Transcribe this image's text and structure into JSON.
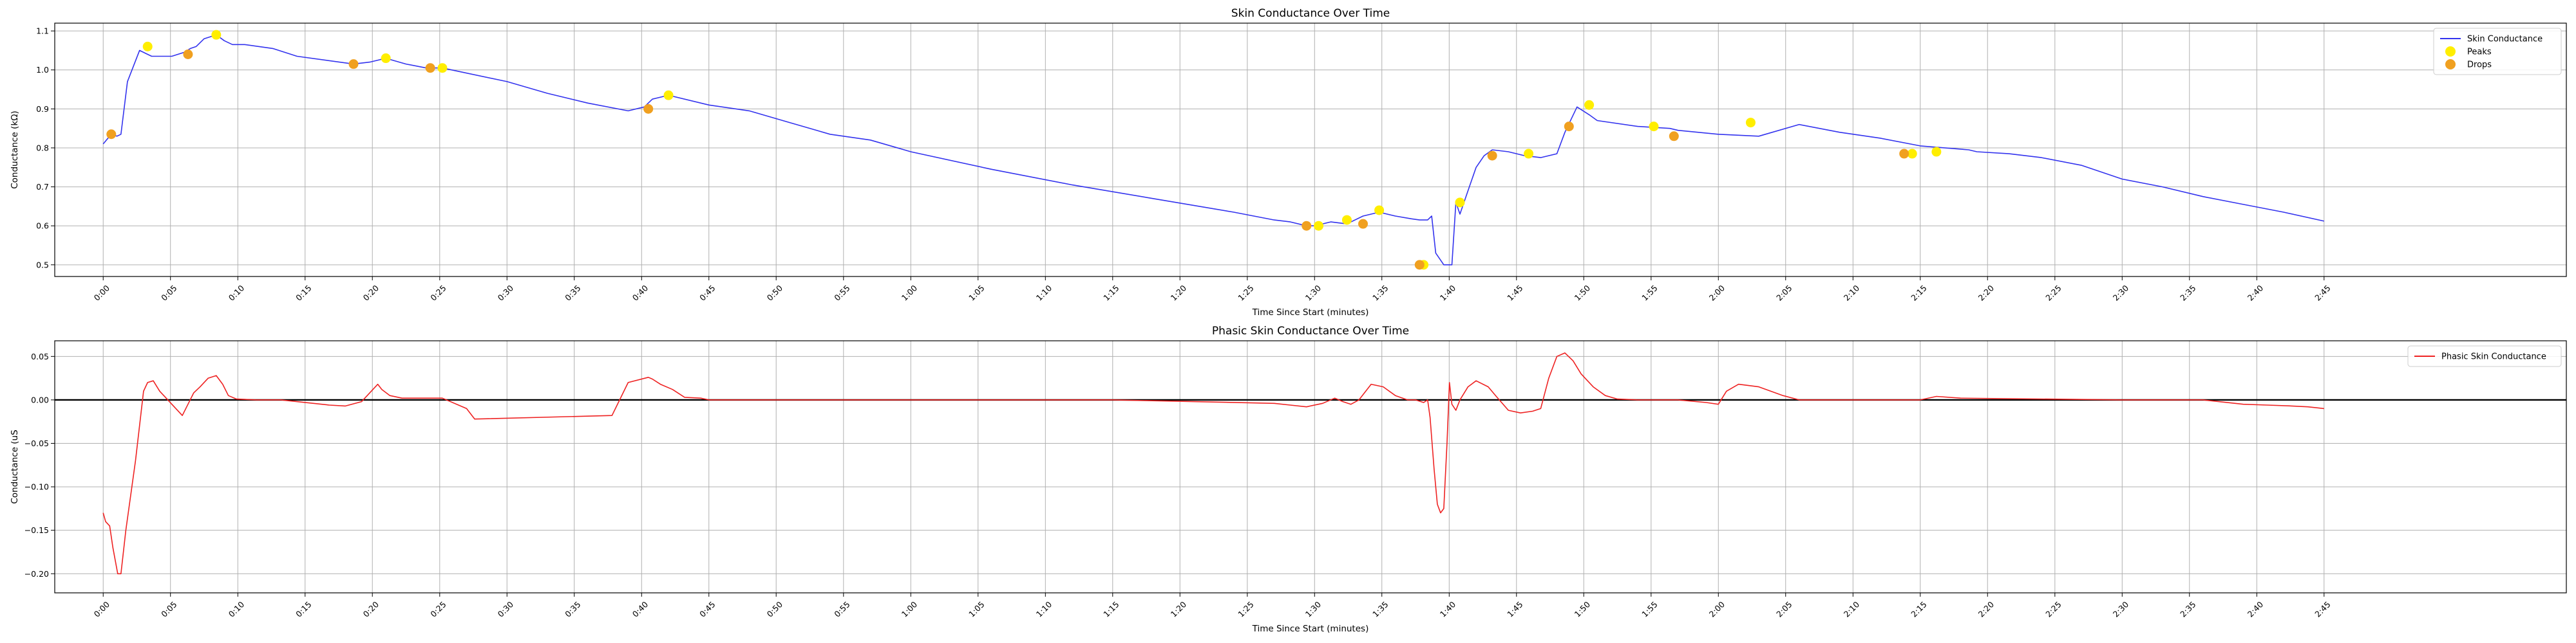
{
  "colors": {
    "skin_line": "#3333ee",
    "phasic_line": "#ee2222",
    "peaks": "#ffee00",
    "drops": "#f0a020",
    "grid": "#b0b0b0"
  },
  "chart_data": [
    {
      "type": "line",
      "title": "Skin Conductance Over Time",
      "xlabel": "Time Since Start (minutes)",
      "ylabel": "Conductance (kΩ)",
      "xlim": [
        -0.06,
        3.05
      ],
      "ylim": [
        0.47,
        1.12
      ],
      "x_unit": "minutes",
      "xticks": [
        0,
        0.0833,
        0.1667,
        0.25,
        0.3333,
        0.4167,
        0.5,
        0.5833,
        0.6667,
        0.75,
        0.8333,
        0.9167,
        1.0,
        1.0833,
        1.1667,
        1.25,
        1.3333,
        1.4167,
        1.5,
        1.5833,
        1.6667,
        1.75,
        1.8333,
        1.9167,
        2.0,
        2.0833,
        2.1667,
        2.25,
        2.3333,
        2.4167,
        2.5,
        2.5833,
        2.6667,
        2.75
      ],
      "xtick_labels": [
        "0:00",
        "0:05",
        "0:10",
        "0:15",
        "0:20",
        "0:25",
        "0:30",
        "0:35",
        "0:40",
        "0:45",
        "0:50",
        "0:55",
        "1:00",
        "1:05",
        "1:10",
        "1:15",
        "1:20",
        "1:25",
        "1:30",
        "1:35",
        "1:40",
        "1:45",
        "1:50",
        "1:55",
        "2:00",
        "2:05",
        "2:10",
        "2:15",
        "2:20",
        "2:25",
        "2:30",
        "2:35",
        "2:40",
        "2:45"
      ],
      "yticks": [
        0.5,
        0.6,
        0.7,
        0.8,
        0.9,
        1.0,
        1.1
      ],
      "ytick_labels": [
        "0.5",
        "0.6",
        "0.7",
        "0.8",
        "0.9",
        "1.0",
        "1.1"
      ],
      "grid": true,
      "legend": "top-right",
      "series": [
        {
          "name": "Skin Conductance",
          "style": "line",
          "x": [
            0,
            0.01,
            0.017,
            0.022,
            0.03,
            0.045,
            0.055,
            0.06,
            0.07,
            0.085,
            0.1,
            0.108,
            0.115,
            0.125,
            0.14,
            0.15,
            0.16,
            0.175,
            0.21,
            0.24,
            0.31,
            0.33,
            0.35,
            0.375,
            0.4,
            0.42,
            0.5,
            0.55,
            0.6,
            0.65,
            0.67,
            0.68,
            0.7,
            0.7,
            0.75,
            0.8,
            0.85,
            0.9,
            0.95,
            1.0,
            1.1,
            1.2,
            1.3,
            1.4,
            1.45,
            1.47,
            1.49,
            1.5,
            1.52,
            1.54,
            1.56,
            1.58,
            1.6,
            1.62,
            1.63,
            1.64,
            1.645,
            1.65,
            1.66,
            1.67,
            1.675,
            1.68,
            1.69,
            1.7,
            1.71,
            1.72,
            1.74,
            1.76,
            1.78,
            1.8,
            1.81,
            1.825,
            1.84,
            1.85,
            1.9,
            1.94,
            1.95,
            2.0,
            2.05,
            2.05,
            2.1,
            2.15,
            2.2,
            2.25,
            2.31,
            2.32,
            2.36,
            2.4,
            2.45,
            2.5,
            2.55,
            2.6,
            2.65,
            2.7,
            2.75
          ],
          "y": [
            0.81,
            0.835,
            0.83,
            0.835,
            0.97,
            1.05,
            1.04,
            1.035,
            1.035,
            1.035,
            1.045,
            1.055,
            1.06,
            1.08,
            1.09,
            1.075,
            1.065,
            1.065,
            1.055,
            1.035,
            1.015,
            1.02,
            1.03,
            1.015,
            1.005,
            1.005,
            0.97,
            0.94,
            0.915,
            0.895,
            0.905,
            0.925,
            0.935,
            0.935,
            0.91,
            0.895,
            0.865,
            0.835,
            0.82,
            0.79,
            0.745,
            0.705,
            0.67,
            0.635,
            0.615,
            0.61,
            0.6,
            0.6,
            0.61,
            0.605,
            0.625,
            0.635,
            0.625,
            0.618,
            0.615,
            0.615,
            0.625,
            0.53,
            0.5,
            0.5,
            0.66,
            0.63,
            0.69,
            0.75,
            0.78,
            0.795,
            0.79,
            0.78,
            0.775,
            0.785,
            0.84,
            0.905,
            0.885,
            0.87,
            0.855,
            0.85,
            0.845,
            0.835,
            0.83,
            0.83,
            0.86,
            0.84,
            0.825,
            0.805,
            0.795,
            0.79,
            0.785,
            0.775,
            0.755,
            0.72,
            0.7,
            0.675,
            0.655,
            0.635,
            0.612
          ]
        },
        {
          "name": "Peaks",
          "style": "scatter",
          "x": [
            0.055,
            0.14,
            0.35,
            0.42,
            0.7,
            1.505,
            1.54,
            1.58,
            1.635,
            1.68,
            1.765,
            1.84,
            1.92,
            2.04,
            2.24,
            2.27
          ],
          "y": [
            1.06,
            1.09,
            1.03,
            1.005,
            0.935,
            0.6,
            0.615,
            0.64,
            0.5,
            0.66,
            0.785,
            0.91,
            0.855,
            0.865,
            0.785,
            0.79
          ]
        },
        {
          "name": "Drops",
          "style": "scatter",
          "x": [
            0.01,
            0.105,
            0.31,
            0.405,
            0.675,
            1.49,
            1.56,
            1.63,
            1.72,
            1.815,
            1.945,
            2.23
          ],
          "y": [
            0.835,
            1.04,
            1.015,
            1.005,
            0.9,
            0.6,
            0.605,
            0.5,
            0.78,
            0.855,
            0.83,
            0.785
          ]
        }
      ]
    },
    {
      "type": "line",
      "title": "Phasic Skin Conductance Over Time",
      "xlabel": "Time Since Start (minutes)",
      "ylabel": "Conductance (uS",
      "xlim": [
        -0.06,
        3.05
      ],
      "ylim": [
        -0.222,
        0.068
      ],
      "x_unit": "minutes",
      "xticks": [
        0,
        0.0833,
        0.1667,
        0.25,
        0.3333,
        0.4167,
        0.5,
        0.5833,
        0.6667,
        0.75,
        0.8333,
        0.9167,
        1.0,
        1.0833,
        1.1667,
        1.25,
        1.3333,
        1.4167,
        1.5,
        1.5833,
        1.6667,
        1.75,
        1.8333,
        1.9167,
        2.0,
        2.0833,
        2.1667,
        2.25,
        2.3333,
        2.4167,
        2.5,
        2.5833,
        2.6667,
        2.75
      ],
      "xtick_labels": [
        "0:00",
        "0:05",
        "0:10",
        "0:15",
        "0:20",
        "0:25",
        "0:30",
        "0:35",
        "0:40",
        "0:45",
        "0:50",
        "0:55",
        "1:00",
        "1:05",
        "1:10",
        "1:15",
        "1:20",
        "1:25",
        "1:30",
        "1:35",
        "1:40",
        "1:45",
        "1:50",
        "1:55",
        "2:00",
        "2:05",
        "2:10",
        "2:15",
        "2:20",
        "2:25",
        "2:30",
        "2:35",
        "2:40",
        "2:45"
      ],
      "yticks": [
        -0.2,
        -0.15,
        -0.1,
        -0.05,
        0.0,
        0.05
      ],
      "ytick_labels": [
        "−0.20",
        "−0.15",
        "−0.10",
        "−0.05",
        "0.00",
        "0.05"
      ],
      "grid": true,
      "legend": "top-right",
      "zero_line": 0,
      "series": [
        {
          "name": "Phasic Skin Conductance",
          "style": "line",
          "x": [
            0,
            0.003,
            0.008,
            0.012,
            0.018,
            0.022,
            0.028,
            0.04,
            0.05,
            0.055,
            0.062,
            0.07,
            0.08,
            0.09,
            0.098,
            0.105,
            0.112,
            0.12,
            0.13,
            0.14,
            0.148,
            0.155,
            0.165,
            0.19,
            0.22,
            0.28,
            0.3,
            0.32,
            0.34,
            0.345,
            0.355,
            0.37,
            0.385,
            0.42,
            0.45,
            0.46,
            0.63,
            0.65,
            0.675,
            0.68,
            0.69,
            0.705,
            0.72,
            0.74,
            0.75,
            0.76,
            1.0,
            1.25,
            1.45,
            1.47,
            1.49,
            1.51,
            1.525,
            1.535,
            1.545,
            1.555,
            1.57,
            1.585,
            1.6,
            1.615,
            1.625,
            1.635,
            1.64,
            1.643,
            1.648,
            1.652,
            1.656,
            1.66,
            1.664,
            1.667,
            1.67,
            1.675,
            1.68,
            1.69,
            1.7,
            1.715,
            1.725,
            1.74,
            1.755,
            1.77,
            1.78,
            1.79,
            1.8,
            1.81,
            1.82,
            1.83,
            1.845,
            1.86,
            1.875,
            1.9,
            1.95,
            1.985,
            2.0,
            2.01,
            2.025,
            2.05,
            2.08,
            2.1,
            2.2,
            2.25,
            2.27,
            2.3,
            2.5,
            2.58,
            2.6,
            2.65,
            2.68,
            2.71,
            2.73,
            2.75
          ],
          "y": [
            -0.13,
            -0.14,
            -0.145,
            -0.17,
            -0.2,
            -0.2,
            -0.15,
            -0.07,
            0.01,
            0.02,
            0.022,
            0.01,
            0.0,
            -0.01,
            -0.018,
            -0.005,
            0.008,
            0.015,
            0.025,
            0.028,
            0.018,
            0.005,
            0.001,
            0.0,
            0.0,
            -0.006,
            -0.007,
            -0.002,
            0.018,
            0.012,
            0.005,
            0.002,
            0.002,
            0.002,
            -0.01,
            -0.022,
            -0.018,
            0.02,
            0.026,
            0.024,
            0.018,
            0.012,
            0.003,
            0.002,
            0.0,
            0.0,
            0.0,
            0.0,
            -0.004,
            -0.006,
            -0.008,
            -0.004,
            0.002,
            -0.002,
            -0.005,
            0.0,
            0.018,
            0.015,
            0.005,
            0.0,
            0.0,
            -0.003,
            0.0,
            -0.02,
            -0.08,
            -0.12,
            -0.13,
            -0.125,
            -0.05,
            0.02,
            -0.005,
            -0.012,
            0.0,
            0.015,
            0.022,
            0.015,
            0.004,
            -0.012,
            -0.015,
            -0.013,
            -0.01,
            0.025,
            0.05,
            0.054,
            0.045,
            0.03,
            0.015,
            0.005,
            0.001,
            0.0,
            0.0,
            -0.003,
            -0.005,
            0.01,
            0.018,
            0.015,
            0.005,
            0.0,
            0.0,
            0.0,
            0.004,
            0.002,
            0.0,
            0.0,
            0.0,
            -0.005,
            -0.006,
            -0.007,
            -0.008,
            -0.01
          ]
        }
      ]
    }
  ]
}
